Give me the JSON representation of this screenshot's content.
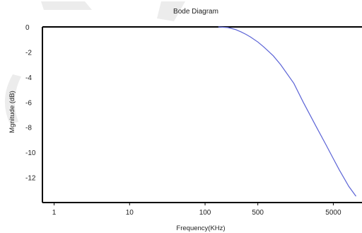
{
  "chart_data": {
    "type": "line",
    "title": "Bode Diagram",
    "xlabel": "Frequency(KHz)",
    "ylabel": "Mgnitude (dB)",
    "x_scale": "log",
    "xlim": [
      0.7,
      12000
    ],
    "ylim": [
      -14,
      0
    ],
    "x_ticks": [
      {
        "value": 1,
        "label": "1"
      },
      {
        "value": 10,
        "label": "10"
      },
      {
        "value": 100,
        "label": "100"
      },
      {
        "value": 500,
        "label": "500"
      },
      {
        "value": 5000,
        "label": "5000"
      }
    ],
    "y_ticks": [
      {
        "value": 0,
        "label": "0"
      },
      {
        "value": -2,
        "label": "-2"
      },
      {
        "value": -4,
        "label": "-4"
      },
      {
        "value": -6,
        "label": "-6"
      },
      {
        "value": -8,
        "label": "-8"
      },
      {
        "value": -10,
        "label": "-10"
      },
      {
        "value": -12,
        "label": "-12"
      }
    ],
    "grid": false,
    "series": [
      {
        "color": "#5b63d6",
        "points": [
          [
            150,
            0
          ],
          [
            200,
            -0.05
          ],
          [
            250,
            -0.2
          ],
          [
            300,
            -0.4
          ],
          [
            350,
            -0.6
          ],
          [
            400,
            -0.8
          ],
          [
            500,
            -1.2
          ],
          [
            600,
            -1.6
          ],
          [
            800,
            -2.3
          ],
          [
            1000,
            -3.0
          ],
          [
            1500,
            -4.5
          ],
          [
            2000,
            -6.0
          ],
          [
            3000,
            -8.0
          ],
          [
            4000,
            -9.4
          ],
          [
            5000,
            -10.5
          ],
          [
            6000,
            -11.4
          ],
          [
            8000,
            -12.7
          ],
          [
            10000,
            -13.5
          ]
        ]
      }
    ]
  }
}
